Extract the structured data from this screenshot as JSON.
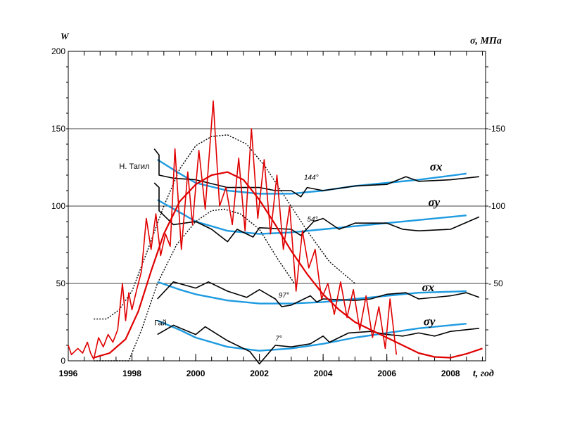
{
  "chart_data": {
    "type": "line",
    "title": "",
    "xlabel": "t, год",
    "ylabel_left": "W",
    "ylabel_right": "σ, МПа",
    "xlim": [
      1996,
      2009.1
    ],
    "ylim": [
      0,
      200
    ],
    "x_ticks": [
      "1996",
      "1998",
      "2000",
      "2002",
      "2004",
      "2006",
      "2008"
    ],
    "y_ticks_left": [
      "0",
      "50",
      "100",
      "150",
      "200"
    ],
    "y_ticks_right": [
      {
        "label": "- 50",
        "value": 50
      },
      {
        "label": "-100",
        "value": 100
      },
      {
        "label": "-150",
        "value": 150
      }
    ],
    "grid": "horizontal",
    "colors": {
      "w_raw": "#e00000",
      "w_fit": "#e00000",
      "sigma_fit": "#1e9be0",
      "sigma_obs": "#000000",
      "envelope": "#000000"
    },
    "series": [
      {
        "name": "W (observed)",
        "style": "w_raw",
        "points": [
          [
            1996,
            10
          ],
          [
            1996.1,
            4
          ],
          [
            1996.3,
            8
          ],
          [
            1996.45,
            5
          ],
          [
            1996.6,
            12
          ],
          [
            1996.7,
            5
          ],
          [
            1996.8,
            1
          ],
          [
            1996.95,
            15
          ],
          [
            1997.1,
            9
          ],
          [
            1997.25,
            17
          ],
          [
            1997.4,
            12
          ],
          [
            1997.55,
            20
          ],
          [
            1997.7,
            50
          ],
          [
            1997.8,
            26
          ],
          [
            1997.9,
            44
          ],
          [
            1998.0,
            33
          ],
          [
            1998.15,
            46
          ],
          [
            1998.3,
            58
          ],
          [
            1998.45,
            92
          ],
          [
            1998.6,
            72
          ],
          [
            1998.75,
            95
          ],
          [
            1998.9,
            68
          ],
          [
            1999.05,
            82
          ],
          [
            1999.2,
            74
          ],
          [
            1999.35,
            137
          ],
          [
            1999.55,
            72
          ],
          [
            1999.75,
            122
          ],
          [
            1999.9,
            88
          ],
          [
            2000.1,
            136
          ],
          [
            2000.3,
            98
          ],
          [
            2000.55,
            168
          ],
          [
            2000.75,
            100
          ],
          [
            2000.95,
            112
          ],
          [
            2001.15,
            88
          ],
          [
            2001.35,
            131
          ],
          [
            2001.55,
            84
          ],
          [
            2001.75,
            150
          ],
          [
            2001.95,
            92
          ],
          [
            2002.15,
            130
          ],
          [
            2002.35,
            82
          ],
          [
            2002.55,
            120
          ],
          [
            2002.75,
            72
          ],
          [
            2002.95,
            100
          ],
          [
            2003.15,
            45
          ],
          [
            2003.35,
            84
          ],
          [
            2003.55,
            60
          ],
          [
            2003.75,
            72
          ],
          [
            2003.95,
            40
          ],
          [
            2004.15,
            50
          ],
          [
            2004.35,
            30
          ],
          [
            2004.55,
            51
          ],
          [
            2004.75,
            28
          ],
          [
            2004.95,
            46
          ],
          [
            2005.15,
            20
          ],
          [
            2005.35,
            42
          ],
          [
            2005.55,
            15
          ],
          [
            2005.75,
            35
          ],
          [
            2005.95,
            8
          ],
          [
            2006.1,
            40
          ],
          [
            2006.3,
            4
          ]
        ]
      },
      {
        "name": "W (trend)",
        "style": "w_fit",
        "points": [
          [
            1996.8,
            2
          ],
          [
            1997.3,
            5
          ],
          [
            1997.8,
            14
          ],
          [
            1998.2,
            32
          ],
          [
            1998.6,
            58
          ],
          [
            1999,
            82
          ],
          [
            1999.5,
            103
          ],
          [
            2000,
            114
          ],
          [
            2000.5,
            120
          ],
          [
            2001,
            122
          ],
          [
            2001.5,
            117
          ],
          [
            2002,
            104
          ],
          [
            2002.5,
            88
          ],
          [
            2003,
            71
          ],
          [
            2003.5,
            56
          ],
          [
            2004,
            43
          ],
          [
            2004.5,
            33
          ],
          [
            2005,
            25
          ],
          [
            2005.5,
            20
          ],
          [
            2006,
            15
          ],
          [
            2006.5,
            10
          ],
          [
            2007,
            5
          ],
          [
            2007.5,
            2.5
          ],
          [
            2008,
            2
          ],
          [
            2008.5,
            4.5
          ],
          [
            2009,
            8
          ]
        ]
      },
      {
        "name": "Envelope upper",
        "style": "envelope",
        "points": [
          [
            1996.8,
            27
          ],
          [
            1997.2,
            27
          ],
          [
            1997.6,
            33
          ],
          [
            1998,
            45
          ],
          [
            1998.5,
            72
          ],
          [
            1999,
            100
          ],
          [
            1999.5,
            124
          ],
          [
            2000,
            139
          ],
          [
            2000.5,
            145
          ],
          [
            2001,
            146
          ],
          [
            2001.6,
            140
          ],
          [
            2002.2,
            125
          ],
          [
            2002.8,
            106
          ],
          [
            2003.5,
            84
          ],
          [
            2004.2,
            64
          ],
          [
            2005,
            50
          ]
        ]
      },
      {
        "name": "Envelope lower",
        "style": "envelope",
        "points": [
          [
            1996.8,
            0
          ],
          [
            1997.9,
            0
          ],
          [
            1998.3,
            20
          ],
          [
            1998.8,
            50
          ],
          [
            1999.4,
            75
          ],
          [
            2000,
            90
          ],
          [
            2000.5,
            97
          ],
          [
            2000.9,
            98
          ],
          [
            2001.4,
            95
          ],
          [
            2002,
            85
          ],
          [
            2002.6,
            65
          ],
          [
            2003.1,
            50
          ]
        ]
      },
      {
        "name": "σx Н. Тагил (fit)",
        "style": "sigma_fit",
        "points": [
          [
            1998.8,
            130
          ],
          [
            1999.5,
            121
          ],
          [
            2000,
            115
          ],
          [
            2001,
            110
          ],
          [
            2002,
            108
          ],
          [
            2003,
            108
          ],
          [
            2004,
            110
          ],
          [
            2005,
            113
          ],
          [
            2006,
            115
          ],
          [
            2007,
            117
          ],
          [
            2008.5,
            121
          ]
        ]
      },
      {
        "name": "σy Н. Тагил (fit)",
        "style": "sigma_fit",
        "points": [
          [
            1998.8,
            104
          ],
          [
            1999.5,
            96
          ],
          [
            2000,
            90
          ],
          [
            2001,
            84
          ],
          [
            2002,
            82
          ],
          [
            2003,
            83
          ],
          [
            2004,
            85
          ],
          [
            2005,
            87
          ],
          [
            2006,
            89
          ],
          [
            2007,
            91
          ],
          [
            2008.5,
            94
          ]
        ]
      },
      {
        "name": "σx Гай (fit)",
        "style": "sigma_fit",
        "points": [
          [
            1998.8,
            51
          ],
          [
            1999.5,
            46
          ],
          [
            2000,
            43
          ],
          [
            2001,
            39
          ],
          [
            2002,
            37
          ],
          [
            2003,
            37
          ],
          [
            2004,
            38
          ],
          [
            2005,
            40
          ],
          [
            2006,
            42
          ],
          [
            2007,
            44
          ],
          [
            2008.5,
            45
          ]
        ]
      },
      {
        "name": "σy Гай (fit)",
        "style": "sigma_fit",
        "points": [
          [
            1998.8,
            26
          ],
          [
            1999.5,
            20
          ],
          [
            2000,
            15
          ],
          [
            2001,
            9
          ],
          [
            2002,
            6.5
          ],
          [
            2003,
            8
          ],
          [
            2004,
            11
          ],
          [
            2005,
            15
          ],
          [
            2006,
            18
          ],
          [
            2007,
            21
          ],
          [
            2008.5,
            24
          ]
        ]
      },
      {
        "name": "σx Н. Тагил (observed)",
        "style": "sigma_obs",
        "points": [
          [
            1998.7,
            137
          ],
          [
            1998.85,
            133
          ],
          [
            1998.85,
            120
          ],
          [
            1999.3,
            118
          ],
          [
            2000,
            117
          ],
          [
            2001,
            112
          ],
          [
            2002,
            112
          ],
          [
            2002.5,
            110
          ],
          [
            2003,
            110
          ],
          [
            2003.3,
            106
          ],
          [
            2003.5,
            112
          ],
          [
            2004,
            110
          ],
          [
            2005,
            113
          ],
          [
            2006,
            114
          ],
          [
            2006.6,
            119
          ],
          [
            2007,
            116
          ],
          [
            2008,
            117
          ],
          [
            2008.9,
            119
          ]
        ]
      },
      {
        "name": "σy Н. Тагил (observed)",
        "style": "sigma_obs",
        "points": [
          [
            1998.7,
            115
          ],
          [
            1998.85,
            112
          ],
          [
            1998.85,
            97
          ],
          [
            1999.3,
            88
          ],
          [
            2000,
            90
          ],
          [
            2000.5,
            85
          ],
          [
            2001,
            77
          ],
          [
            2001.3,
            85
          ],
          [
            2001.8,
            80
          ],
          [
            2002,
            86
          ],
          [
            2003,
            85
          ],
          [
            2003.3,
            81
          ],
          [
            2003.7,
            90
          ],
          [
            2004,
            92
          ],
          [
            2004.5,
            85
          ],
          [
            2005,
            89
          ],
          [
            2006,
            89
          ],
          [
            2006.5,
            85
          ],
          [
            2007,
            84
          ],
          [
            2008,
            85
          ],
          [
            2008.9,
            93
          ]
        ]
      },
      {
        "name": "σx Гай (observed)",
        "style": "sigma_obs",
        "points": [
          [
            1998.8,
            40
          ],
          [
            1999.3,
            51
          ],
          [
            2000,
            47
          ],
          [
            2000.4,
            51
          ],
          [
            2001,
            45
          ],
          [
            2001.6,
            41
          ],
          [
            2002,
            46
          ],
          [
            2002.5,
            40
          ],
          [
            2002.7,
            35
          ],
          [
            2003,
            36
          ],
          [
            2003.6,
            42
          ],
          [
            2003.8,
            38
          ],
          [
            2004,
            40
          ],
          [
            2005,
            39
          ],
          [
            2005.5,
            40
          ],
          [
            2006,
            43
          ],
          [
            2006.6,
            44
          ],
          [
            2007,
            40
          ],
          [
            2008,
            42
          ],
          [
            2008.5,
            44
          ],
          [
            2008.9,
            41
          ]
        ]
      },
      {
        "name": "σy Гай (observed)",
        "style": "sigma_obs",
        "points": [
          [
            1998.8,
            17
          ],
          [
            1999.3,
            23
          ],
          [
            2000,
            17
          ],
          [
            2000.3,
            22
          ],
          [
            2001,
            13
          ],
          [
            2001.7,
            6
          ],
          [
            2002,
            -2
          ],
          [
            2002.5,
            10
          ],
          [
            2003,
            9
          ],
          [
            2003.6,
            11
          ],
          [
            2004,
            16
          ],
          [
            2004.2,
            12
          ],
          [
            2004.8,
            18
          ],
          [
            2005.5,
            19
          ],
          [
            2006,
            17
          ],
          [
            2006.5,
            16
          ],
          [
            2007,
            18
          ],
          [
            2007.5,
            16
          ],
          [
            2008,
            19
          ],
          [
            2008.9,
            21
          ]
        ]
      }
    ],
    "annotations": [
      {
        "text": "Н. Тагил",
        "x": 1997.6,
        "y": 124,
        "kind": "lbl"
      },
      {
        "text": "Гай",
        "x": 1998.7,
        "y": 23,
        "kind": "lbl"
      },
      {
        "text": "144°",
        "x": 2003.4,
        "y": 117,
        "kind": "ann"
      },
      {
        "text": "54°",
        "x": 2003.5,
        "y": 90,
        "kind": "ann"
      },
      {
        "text": "97°",
        "x": 2002.6,
        "y": 41,
        "kind": "ann"
      },
      {
        "text": "7°",
        "x": 2002.5,
        "y": 13,
        "kind": "ann"
      },
      {
        "text": "σx",
        "x": 2007.35,
        "y": 123,
        "kind": "sig"
      },
      {
        "text": "σy",
        "x": 2007.3,
        "y": 100,
        "kind": "sig"
      },
      {
        "text": "σx",
        "x": 2007.1,
        "y": 45,
        "kind": "sig"
      },
      {
        "text": "σy",
        "x": 2007.15,
        "y": 23,
        "kind": "sig"
      }
    ]
  }
}
